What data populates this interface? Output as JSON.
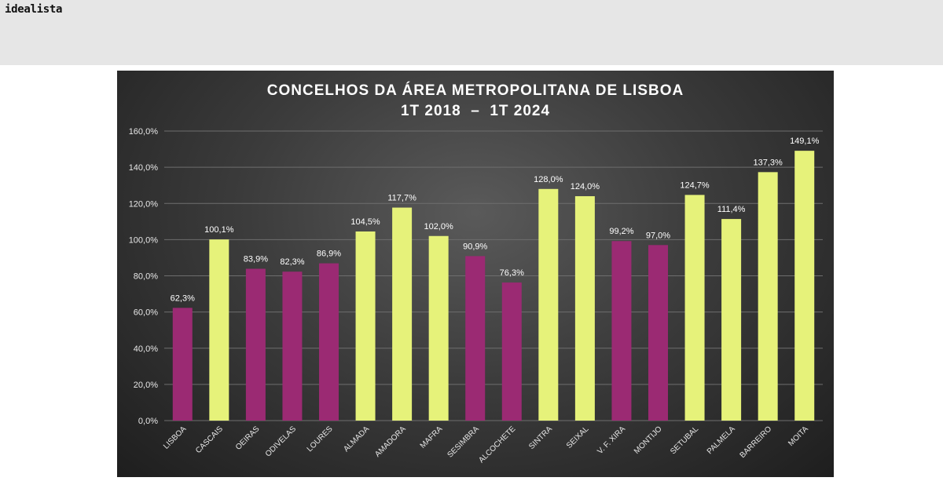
{
  "header": {
    "brand": "idealista"
  },
  "chart_data": {
    "type": "bar",
    "title": "CONCELHOS DA ÁREA METROPOLITANA DE LISBOA",
    "subtitle": "1T 2018  –  1T 2024",
    "xlabel": "",
    "ylabel": "",
    "ylim": [
      0,
      160
    ],
    "yticks": [
      0,
      20,
      40,
      60,
      80,
      100,
      120,
      140,
      160
    ],
    "ytick_labels": [
      "0,0%",
      "20,0%",
      "40,0%",
      "60,0%",
      "80,0%",
      "100,0%",
      "120,0%",
      "140,0%",
      "160,0%"
    ],
    "grid": true,
    "categories": [
      "LISBOA",
      "CASCAIS",
      "OEIRAS",
      "ODIVELAS",
      "LOURES",
      "ALMADA",
      "AMADORA",
      "MAFRA",
      "SESIMBRA",
      "ALCOCHETE",
      "SINTRA",
      "SEIXAL",
      "V. F. XIRA",
      "MONTIJO",
      "SETUBAL",
      "PALMELA",
      "BARREIRO",
      "MOITA"
    ],
    "values": [
      62.3,
      100.1,
      83.9,
      82.3,
      86.9,
      104.5,
      117.7,
      102.0,
      90.9,
      76.3,
      128.0,
      124.0,
      99.2,
      97.0,
      124.7,
      111.4,
      137.3,
      149.1
    ],
    "value_labels": [
      "62,3%",
      "100,1%",
      "83,9%",
      "82,3%",
      "86,9%",
      "104,5%",
      "117,7%",
      "102,0%",
      "90,9%",
      "76,3%",
      "128,0%",
      "124,0%",
      "99,2%",
      "97,0%",
      "124,7%",
      "111,4%",
      "137,3%",
      "149,1%"
    ],
    "bar_colors": [
      "#9b2a73",
      "#e6f27a",
      "#9b2a73",
      "#9b2a73",
      "#9b2a73",
      "#e6f27a",
      "#e6f27a",
      "#e6f27a",
      "#9b2a73",
      "#9b2a73",
      "#e6f27a",
      "#e6f27a",
      "#9b2a73",
      "#9b2a73",
      "#e6f27a",
      "#e6f27a",
      "#e6f27a",
      "#e6f27a"
    ],
    "background": "#3c3c3c"
  }
}
